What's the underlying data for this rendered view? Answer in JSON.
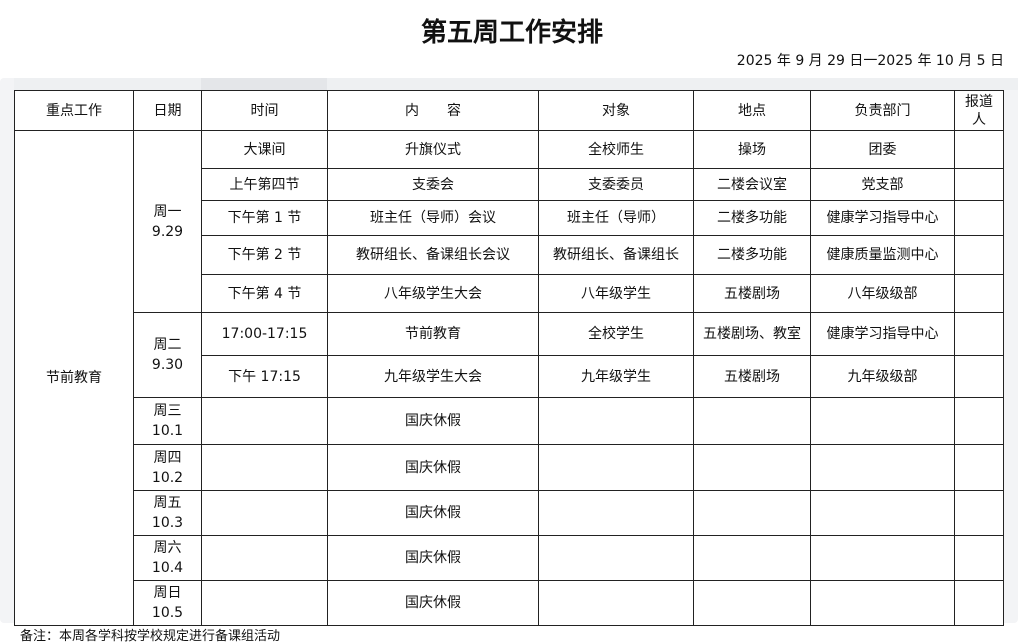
{
  "title": "第五周工作安排",
  "date_range": "2025 年 9 月 29 日一2025 年 10 月 5 日",
  "headers": [
    "重点工作",
    "日期",
    "时间",
    "内　　容",
    "对象",
    "地点",
    "负责部门",
    "报道人"
  ],
  "key_work": "节前教育",
  "days": {
    "mon": {
      "day": "周一",
      "date": "9.29"
    },
    "tue": {
      "day": "周二",
      "date": "9.30"
    },
    "wed": {
      "day": "周三",
      "date": "10.1"
    },
    "thu": {
      "day": "周四",
      "date": "10.2"
    },
    "fri": {
      "day": "周五",
      "date": "10.3"
    },
    "sat": {
      "day": "周六",
      "date": "10.4"
    },
    "sun": {
      "day": "周日",
      "date": "10.5"
    }
  },
  "rows": [
    {
      "time": "大课间",
      "content": "升旗仪式",
      "target": "全校师生",
      "place": "操场",
      "dept": "团委"
    },
    {
      "time": "上午第四节",
      "content": "支委会",
      "target": "支委委员",
      "place": "二楼会议室",
      "dept": "党支部"
    },
    {
      "time": "下午第 1 节",
      "content": "班主任（导师）会议",
      "target": "班主任（导师）",
      "place": "二楼多功能",
      "dept": "健康学习指导中心"
    },
    {
      "time": "下午第 2 节",
      "content": "教研组长、备课组长会议",
      "target": "教研组长、备课组长",
      "place": "二楼多功能",
      "dept": "健康质量监测中心"
    },
    {
      "time": "下午第 4 节",
      "content": "八年级学生大会",
      "target": "八年级学生",
      "place": "五楼剧场",
      "dept": "八年级级部"
    },
    {
      "time": "17:00-17:15",
      "content": "节前教育",
      "target": "全校学生",
      "place": "五楼剧场、教室",
      "dept": "健康学习指导中心"
    },
    {
      "time": "下午 17:15",
      "content": "九年级学生大会",
      "target": "九年级学生",
      "place": "五楼剧场",
      "dept": "九年级级部"
    }
  ],
  "holiday": "国庆休假",
  "note": "备注：本周各学科按学校规定进行备课组活动"
}
